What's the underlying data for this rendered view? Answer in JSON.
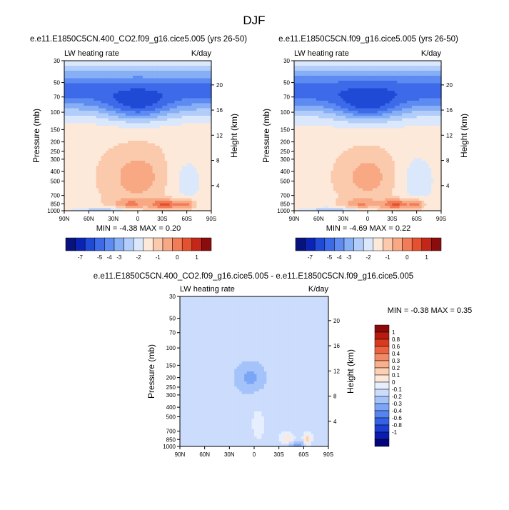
{
  "figure": {
    "title": "DJF"
  },
  "colors": {
    "lw_scale": [
      "#08127d",
      "#0a23b4",
      "#1f4ad6",
      "#3c6ae8",
      "#5d8bf2",
      "#86aff6",
      "#b2cdf9",
      "#dbe8fb",
      "#fde9d9",
      "#fbcaad",
      "#f8a882",
      "#f17c57",
      "#e5512e",
      "#c42619",
      "#8b0c0c"
    ],
    "diff_scale": [
      "#02047a",
      "#0b1cb0",
      "#1c3ed2",
      "#3461e6",
      "#5584f1",
      "#7ba5f6",
      "#a4c3fa",
      "#cbdcfc",
      "#e7efff",
      "#fde9d9",
      "#fcd0b4",
      "#f9b18c",
      "#f48965",
      "#eb6240",
      "#d93a1d",
      "#b81a0f",
      "#8b0908"
    ]
  },
  "chart_data": [
    {
      "type": "heatmap",
      "title": "e.e11.E1850C5CN.400_CO2.f09_g16.cice5.005 (yrs 26-50)",
      "left_label": "LW heating rate",
      "right_label": "K/day",
      "ylabel": "Pressure (mb)",
      "ylabel_right": "Height (km)",
      "x_ticks": [
        "90N",
        "60N",
        "30N",
        "0",
        "30S",
        "60S",
        "90S"
      ],
      "y_ticks": [
        "30",
        "50",
        "70",
        "100",
        "150",
        "200",
        "250",
        "300",
        "400",
        "500",
        "700",
        "850",
        "1000"
      ],
      "height_ticks": [
        "20",
        "16",
        "12",
        "8",
        "4"
      ],
      "stats": "MIN = -4.38  MAX =  0.20",
      "colorbar": {
        "labels": [
          "-7",
          "-5",
          "-4",
          "-3",
          "-2",
          "-1",
          "0",
          "1"
        ]
      }
    },
    {
      "type": "heatmap",
      "title": "e.e11.E1850C5CN.f09_g16.cice5.005 (yrs 26-50)",
      "left_label": "LW heating rate",
      "right_label": "K/day",
      "ylabel": "Pressure (mb)",
      "ylabel_right": "Height (km)",
      "x_ticks": [
        "90N",
        "60N",
        "30N",
        "0",
        "30S",
        "60S",
        "90S"
      ],
      "y_ticks": [
        "30",
        "50",
        "70",
        "100",
        "150",
        "200",
        "250",
        "300",
        "400",
        "500",
        "700",
        "850",
        "1000"
      ],
      "height_ticks": [
        "20",
        "16",
        "12",
        "8",
        "4"
      ],
      "stats": "MIN = -4.69  MAX =  0.22",
      "colorbar": {
        "labels": [
          "-7",
          "-5",
          "-4",
          "-3",
          "-2",
          "-1",
          "0",
          "1"
        ]
      }
    },
    {
      "type": "heatmap",
      "title": "e.e11.E1850C5CN.400_CO2.f09_g16.cice5.005 - e.e11.E1850C5CN.f09_g16.cice5.005",
      "left_label": "LW heating rate",
      "right_label": "K/day",
      "ylabel": "Pressure (mb)",
      "ylabel_right": "Height (km)",
      "x_ticks": [
        "90N",
        "60N",
        "30N",
        "0",
        "30S",
        "60S",
        "90S"
      ],
      "y_ticks": [
        "30",
        "50",
        "70",
        "100",
        "150",
        "200",
        "250",
        "300",
        "400",
        "500",
        "700",
        "850",
        "1000"
      ],
      "height_ticks": [
        "20",
        "16",
        "12",
        "8",
        "4"
      ],
      "stats": "MIN = -0.38  MAX =  0.35",
      "colorbar": {
        "labels": [
          "1",
          "0.8",
          "0.6",
          "0.4",
          "0.3",
          "0.2",
          "0.1",
          "0",
          "-0.1",
          "-0.2",
          "-0.3",
          "-0.4",
          "-0.6",
          "-0.8",
          "-1"
        ]
      }
    }
  ]
}
